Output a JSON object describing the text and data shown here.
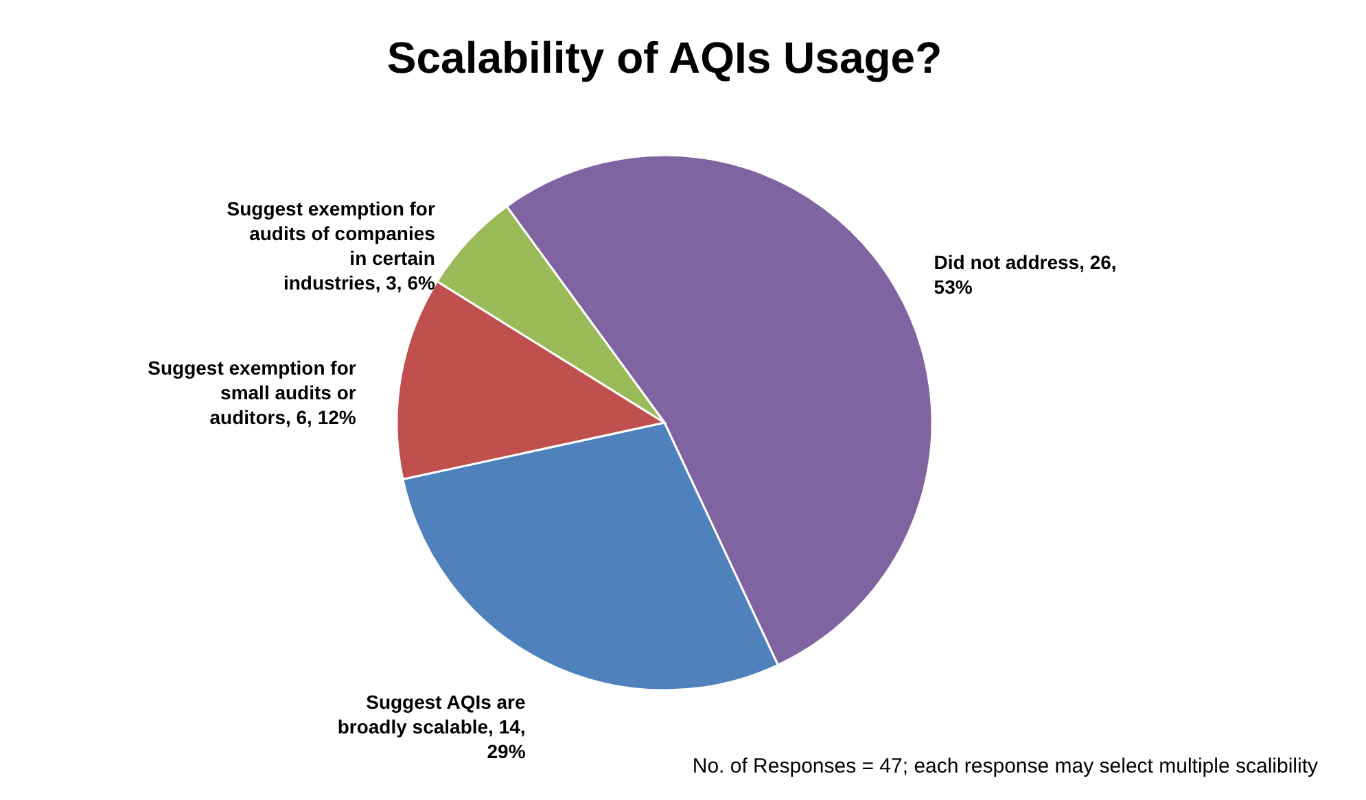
{
  "chart_data": {
    "type": "pie",
    "title": "Scalability of AQIs Usage?",
    "categories": [
      "Did not address",
      "Suggest AQIs are broadly scalable",
      "Suggest exemption for small audits or auditors",
      "Suggest exemption for audits of companies in certain industries"
    ],
    "values": [
      26,
      14,
      6,
      3
    ],
    "value_labels": [
      "26, 53%",
      "14, 29%",
      "6, 12%",
      "3, 6%"
    ],
    "colors": [
      "#8064a2",
      "#4f81bd",
      "#c0504d",
      "#9bbb59"
    ],
    "legend": false,
    "annotations": [
      "No. of Responses = 47; each response may select multiple scalibility"
    ]
  }
}
